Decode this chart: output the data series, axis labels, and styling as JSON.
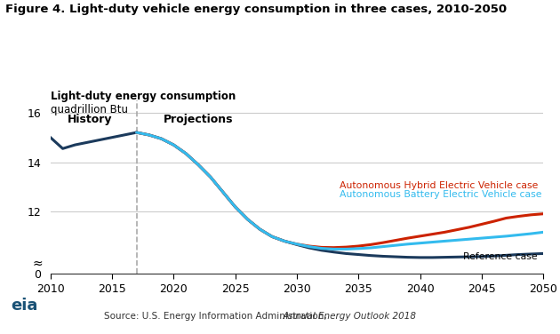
{
  "title": "Figure 4. Light-duty vehicle energy consumption in three cases, 2010-2050",
  "ylabel_top": "Light-duty energy consumption",
  "ylabel_unit": "quadrillion Btu",
  "source": "Source: U.S. Energy Information Administration,  Annual Energy Outlook 2018",
  "history_label": "History",
  "projections_label": "Projections",
  "history_end_year": 2017,
  "colors": {
    "reference": "#1b3a5c",
    "hybrid": "#cc2200",
    "battery": "#33bbee",
    "dashed_line": "#aaaaaa",
    "grid": "#cccccc",
    "background": "#ffffff"
  },
  "labels": {
    "reference": "Reference case",
    "hybrid": "Autonomous Hybrid Electric Vehicle case",
    "battery": "Autonomous Battery Electric Vehicle case"
  },
  "yticks": [
    0,
    12,
    14,
    16
  ],
  "xticks": [
    2010,
    2015,
    2020,
    2025,
    2030,
    2035,
    2040,
    2045,
    2050
  ],
  "ylim_bottom": 9.5,
  "ylim_top": 16.5,
  "reference_years": [
    2010,
    2011,
    2012,
    2013,
    2014,
    2015,
    2016,
    2017,
    2018,
    2019,
    2020,
    2021,
    2022,
    2023,
    2024,
    2025,
    2026,
    2027,
    2028,
    2029,
    2030,
    2031,
    2032,
    2033,
    2034,
    2035,
    2036,
    2037,
    2038,
    2039,
    2040,
    2041,
    2042,
    2043,
    2044,
    2045,
    2046,
    2047,
    2048,
    2049,
    2050
  ],
  "reference_values": [
    15.0,
    14.55,
    14.7,
    14.8,
    14.9,
    15.0,
    15.1,
    15.2,
    15.1,
    14.95,
    14.7,
    14.35,
    13.9,
    13.4,
    12.8,
    12.2,
    11.7,
    11.3,
    11.0,
    10.82,
    10.68,
    10.55,
    10.45,
    10.38,
    10.32,
    10.28,
    10.24,
    10.21,
    10.19,
    10.17,
    10.16,
    10.16,
    10.17,
    10.18,
    10.19,
    10.2,
    10.22,
    10.25,
    10.28,
    10.3,
    10.32
  ],
  "hybrid_years": [
    2017,
    2018,
    2019,
    2020,
    2021,
    2022,
    2023,
    2024,
    2025,
    2026,
    2027,
    2028,
    2029,
    2030,
    2031,
    2032,
    2033,
    2034,
    2035,
    2036,
    2037,
    2038,
    2039,
    2040,
    2041,
    2042,
    2043,
    2044,
    2045,
    2046,
    2047,
    2048,
    2049,
    2050
  ],
  "hybrid_values": [
    15.2,
    15.1,
    14.95,
    14.7,
    14.35,
    13.9,
    13.4,
    12.8,
    12.2,
    11.7,
    11.3,
    11.0,
    10.82,
    10.7,
    10.62,
    10.57,
    10.56,
    10.58,
    10.62,
    10.68,
    10.76,
    10.85,
    10.94,
    11.02,
    11.1,
    11.18,
    11.28,
    11.38,
    11.5,
    11.62,
    11.75,
    11.82,
    11.88,
    11.92
  ],
  "battery_years": [
    2017,
    2018,
    2019,
    2020,
    2021,
    2022,
    2023,
    2024,
    2025,
    2026,
    2027,
    2028,
    2029,
    2030,
    2031,
    2032,
    2033,
    2034,
    2035,
    2036,
    2037,
    2038,
    2039,
    2040,
    2041,
    2042,
    2043,
    2044,
    2045,
    2046,
    2047,
    2048,
    2049,
    2050
  ],
  "battery_values": [
    15.2,
    15.1,
    14.95,
    14.7,
    14.35,
    13.9,
    13.4,
    12.8,
    12.2,
    11.7,
    11.3,
    11.0,
    10.82,
    10.7,
    10.6,
    10.53,
    10.5,
    10.5,
    10.52,
    10.55,
    10.6,
    10.65,
    10.7,
    10.74,
    10.78,
    10.82,
    10.86,
    10.9,
    10.94,
    10.98,
    11.02,
    11.07,
    11.12,
    11.18
  ]
}
